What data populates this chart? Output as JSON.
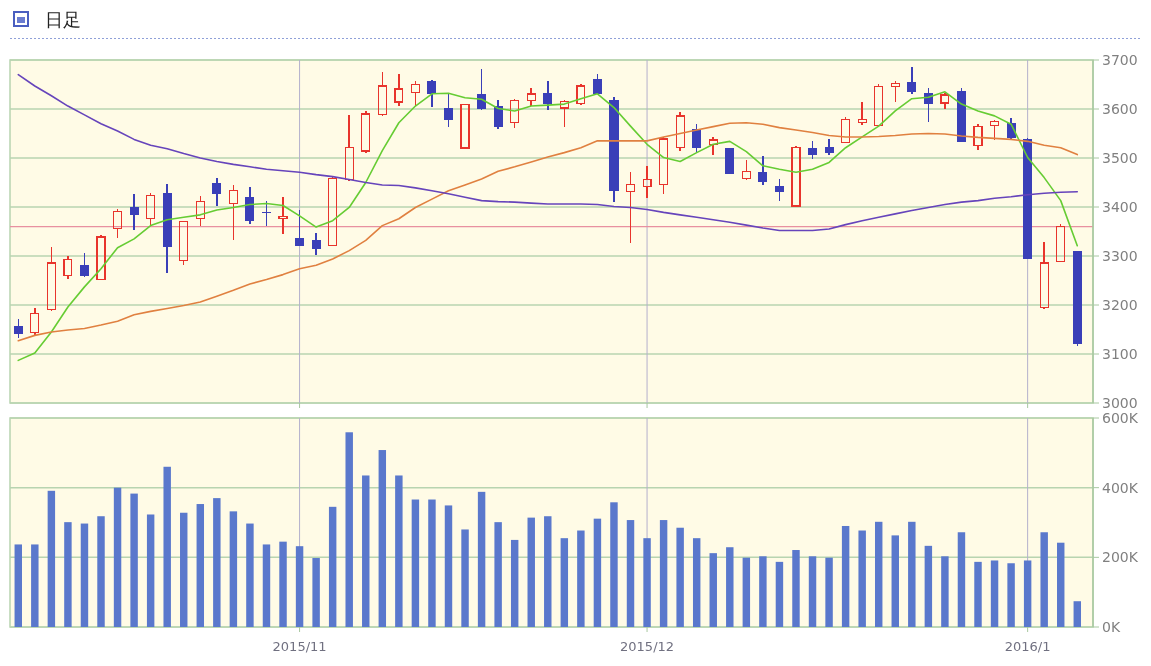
{
  "chart_data": [
    {
      "type": "candlestick",
      "title": "日足",
      "categories": [
        null,
        null,
        null,
        null,
        null,
        null,
        null,
        null,
        null,
        null,
        null,
        null,
        null,
        null,
        null,
        null,
        null,
        "2015/11",
        null,
        null,
        null,
        null,
        null,
        null,
        null,
        null,
        null,
        null,
        null,
        null,
        null,
        null,
        null,
        null,
        null,
        null,
        null,
        null,
        "2015/12",
        null,
        null,
        null,
        null,
        null,
        null,
        null,
        null,
        null,
        null,
        null,
        null,
        null,
        null,
        null,
        null,
        null,
        null,
        null,
        null,
        null,
        null,
        "2016/1",
        null,
        null,
        null
      ],
      "ohlc": [
        [
          3157,
          3172,
          3132,
          3140
        ],
        [
          3143,
          3194,
          3136,
          3184
        ],
        [
          3189,
          3318,
          3188,
          3287
        ],
        [
          3259,
          3300,
          3254,
          3294
        ],
        [
          3282,
          3306,
          3257,
          3259
        ],
        [
          3250,
          3343,
          3250,
          3340
        ],
        [
          3355,
          3396,
          3336,
          3392
        ],
        [
          3401,
          3426,
          3354,
          3384
        ],
        [
          3376,
          3428,
          3362,
          3425
        ],
        [
          3428,
          3447,
          3265,
          3318
        ],
        [
          3290,
          3372,
          3281,
          3371
        ],
        [
          3376,
          3422,
          3361,
          3413
        ],
        [
          3450,
          3460,
          3403,
          3426
        ],
        [
          3406,
          3445,
          3333,
          3435
        ],
        [
          3420,
          3441,
          3365,
          3372
        ],
        [
          3390,
          3413,
          3362,
          3388
        ],
        [
          3376,
          3420,
          3345,
          3382
        ],
        [
          3336,
          3393,
          3320,
          3321
        ],
        [
          3332,
          3346,
          3302,
          3315
        ],
        [
          3321,
          3462,
          3321,
          3460
        ],
        [
          3455,
          3587,
          3454,
          3523
        ],
        [
          3513,
          3596,
          3511,
          3591
        ],
        [
          3587,
          3676,
          3586,
          3648
        ],
        [
          3613,
          3671,
          3606,
          3642
        ],
        [
          3632,
          3658,
          3606,
          3652
        ],
        [
          3658,
          3660,
          3604,
          3631
        ],
        [
          3603,
          3630,
          3563,
          3577
        ],
        [
          3519,
          3611,
          3518,
          3610
        ],
        [
          3631,
          3681,
          3597,
          3601
        ],
        [
          3606,
          3618,
          3559,
          3563
        ],
        [
          3571,
          3621,
          3562,
          3618
        ],
        [
          3616,
          3642,
          3606,
          3632
        ],
        [
          3633,
          3658,
          3597,
          3610
        ],
        [
          3601,
          3618,
          3563,
          3616
        ],
        [
          3610,
          3652,
          3608,
          3648
        ],
        [
          3662,
          3671,
          3630,
          3631
        ],
        [
          3618,
          3624,
          3411,
          3433
        ],
        [
          3431,
          3471,
          3326,
          3447
        ],
        [
          3440,
          3484,
          3418,
          3457
        ],
        [
          3445,
          3543,
          3426,
          3540
        ],
        [
          3520,
          3594,
          3515,
          3587
        ],
        [
          3560,
          3569,
          3511,
          3521
        ],
        [
          3527,
          3543,
          3506,
          3538
        ],
        [
          3520,
          3521,
          3467,
          3467
        ],
        [
          3457,
          3496,
          3456,
          3474
        ],
        [
          3472,
          3504,
          3445,
          3452
        ],
        [
          3443,
          3457,
          3413,
          3430
        ],
        [
          3401,
          3525,
          3401,
          3523
        ],
        [
          3520,
          3534,
          3498,
          3506
        ],
        [
          3523,
          3538,
          3506,
          3511
        ],
        [
          3531,
          3584,
          3531,
          3580
        ],
        [
          3571,
          3615,
          3567,
          3580
        ],
        [
          3565,
          3652,
          3563,
          3647
        ],
        [
          3645,
          3657,
          3615,
          3654
        ],
        [
          3655,
          3686,
          3631,
          3635
        ],
        [
          3633,
          3643,
          3574,
          3611
        ],
        [
          3611,
          3633,
          3601,
          3630
        ],
        [
          3637,
          3643,
          3532,
          3532
        ],
        [
          3525,
          3569,
          3516,
          3565
        ],
        [
          3565,
          3577,
          3537,
          3576
        ],
        [
          3572,
          3581,
          3538,
          3540
        ],
        [
          3538,
          3540,
          3293,
          3293
        ],
        [
          3193,
          3328,
          3191,
          3287
        ],
        [
          3287,
          3365,
          3287,
          3362
        ],
        [
          3310,
          3311,
          3116,
          3121
        ]
      ],
      "colors": [
        "#3a3fb8",
        "#e8342c",
        "#e8342c",
        "#e8342c",
        "#3a3fb8",
        "#e8342c",
        "#e8342c",
        "#3a3fb8",
        "#e8342c",
        "#3a3fb8",
        "#e8342c",
        "#e8342c",
        "#3a3fb8",
        "#e8342c",
        "#3a3fb8",
        "#3a3fb8",
        "#e8342c",
        "#3a3fb8",
        "#3a3fb8",
        "#e8342c",
        "#e8342c",
        "#e8342c",
        "#e8342c",
        "#e8342c",
        "#e8342c",
        "#3a3fb8",
        "#3a3fb8",
        "#e8342c",
        "#3a3fb8",
        "#3a3fb8",
        "#e8342c",
        "#e8342c",
        "#3a3fb8",
        "#e8342c",
        "#e8342c",
        "#3a3fb8",
        "#3a3fb8",
        "#e8342c",
        "#e8342c",
        "#e8342c",
        "#e8342c",
        "#3a3fb8",
        "#e8342c",
        "#3a3fb8",
        "#e8342c",
        "#3a3fb8",
        "#3a3fb8",
        "#e8342c",
        "#3a3fb8",
        "#3a3fb8",
        "#e8342c",
        "#e8342c",
        "#e8342c",
        "#e8342c",
        "#3a3fb8",
        "#3a3fb8",
        "#e8342c",
        "#3a3fb8",
        "#e8342c",
        "#e8342c",
        "#3a3fb8",
        "#3a3fb8",
        "#e8342c",
        "#e8342c",
        "#3a3fb8"
      ],
      "series": [
        {
          "type": "line",
          "color": "#66cc33",
          "values": [
            3087,
            3102,
            3145,
            3196,
            3237,
            3274,
            3317,
            3335,
            3362,
            3374,
            3379,
            3384,
            3394,
            3399,
            3405,
            3407,
            3403,
            3382,
            3359,
            3372,
            3399,
            3450,
            3515,
            3572,
            3606,
            3631,
            3632,
            3623,
            3620,
            3601,
            3596,
            3606,
            3608,
            3610,
            3621,
            3631,
            3603,
            3565,
            3528,
            3501,
            3493,
            3511,
            3528,
            3534,
            3513,
            3484,
            3477,
            3471,
            3477,
            3491,
            3521,
            3543,
            3565,
            3596,
            3621,
            3624,
            3635,
            3610,
            3596,
            3586,
            3569,
            3501,
            3460,
            3413,
            3321
          ]
        },
        {
          "type": "line",
          "color": "#e08040",
          "values": [
            3127,
            3138,
            3145,
            3149,
            3152,
            3159,
            3167,
            3180,
            3187,
            3193,
            3199,
            3206,
            3218,
            3230,
            3243,
            3252,
            3262,
            3274,
            3281,
            3294,
            3311,
            3332,
            3362,
            3376,
            3399,
            3416,
            3433,
            3445,
            3457,
            3473,
            3482,
            3492,
            3502,
            3511,
            3521,
            3535,
            3535,
            3535,
            3535,
            3543,
            3550,
            3557,
            3564,
            3571,
            3572,
            3569,
            3562,
            3557,
            3552,
            3546,
            3543,
            3543,
            3544,
            3546,
            3549,
            3550,
            3549,
            3545,
            3542,
            3540,
            3538,
            3534,
            3526,
            3521,
            3507
          ]
        },
        {
          "type": "line",
          "color": "#6644bb",
          "values": [
            3670,
            3647,
            3627,
            3606,
            3588,
            3570,
            3555,
            3538,
            3526,
            3519,
            3509,
            3500,
            3493,
            3487,
            3482,
            3477,
            3474,
            3471,
            3466,
            3462,
            3456,
            3450,
            3445,
            3444,
            3439,
            3433,
            3427,
            3420,
            3413,
            3411,
            3410,
            3408,
            3406,
            3406,
            3406,
            3405,
            3401,
            3399,
            3395,
            3389,
            3384,
            3379,
            3374,
            3369,
            3363,
            3357,
            3352,
            3352,
            3352,
            3355,
            3364,
            3372,
            3379,
            3386,
            3393,
            3399,
            3405,
            3410,
            3413,
            3418,
            3421,
            3425,
            3428,
            3430,
            3431
          ]
        }
      ],
      "ylim": [
        3000,
        3700
      ],
      "yticks": [
        3000,
        3100,
        3200,
        3300,
        3400,
        3500,
        3600,
        3700
      ],
      "ref_lines": [
        {
          "axis": "y",
          "value": 3360,
          "color": "#e890a0"
        }
      ],
      "grid": true,
      "tick_labels": "y"
    },
    {
      "type": "bar",
      "color": "#5a78cc",
      "categories": [
        null,
        null,
        null,
        null,
        null,
        null,
        null,
        null,
        null,
        null,
        null,
        null,
        null,
        null,
        null,
        null,
        null,
        "2015/11",
        null,
        null,
        null,
        null,
        null,
        null,
        null,
        null,
        null,
        null,
        null,
        null,
        null,
        null,
        null,
        null,
        null,
        null,
        null,
        null,
        "2015/12",
        null,
        null,
        null,
        null,
        null,
        null,
        null,
        null,
        null,
        null,
        null,
        null,
        null,
        null,
        null,
        null,
        null,
        null,
        null,
        null,
        null,
        null,
        "2016/1",
        null,
        null,
        null
      ],
      "values": [
        237000,
        237000,
        391000,
        301000,
        297000,
        318000,
        400000,
        383000,
        323000,
        460000,
        328000,
        353000,
        370000,
        332000,
        297000,
        237000,
        245000,
        232000,
        198000,
        345000,
        559000,
        435000,
        508000,
        435000,
        366000,
        366000,
        349000,
        280000,
        388000,
        301000,
        250000,
        314000,
        318000,
        255000,
        277000,
        311000,
        358000,
        307000,
        255000,
        307000,
        285000,
        255000,
        212000,
        229000,
        199000,
        203000,
        187000,
        221000,
        203000,
        199000,
        290000,
        277000,
        302000,
        263000,
        302000,
        233000,
        203000,
        272000,
        187000,
        191000,
        183000,
        191000,
        272000,
        242000,
        74000
      ],
      "ylim": [
        0,
        600000
      ],
      "yticks": [
        {
          "value": 0,
          "label": "0K"
        },
        {
          "value": 200000,
          "label": "200K"
        },
        {
          "value": 400000,
          "label": "400K"
        },
        {
          "value": 600000,
          "label": "600K"
        }
      ],
      "grid": true
    }
  ]
}
